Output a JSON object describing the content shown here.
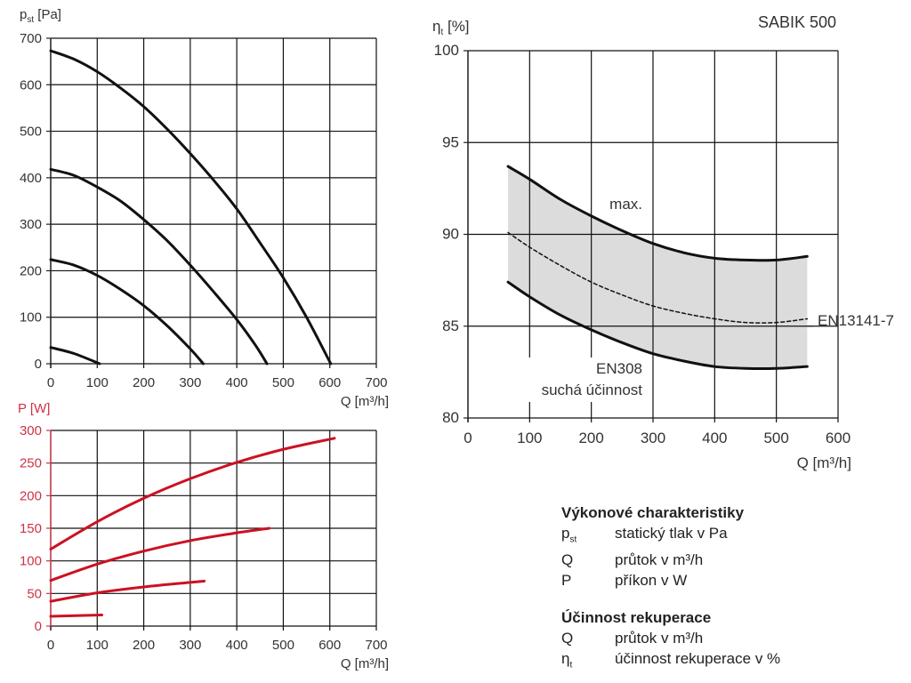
{
  "product_title": "SABIK 500",
  "chart_data": [
    {
      "id": "pressure",
      "type": "line",
      "title": "",
      "ylabel_main": "p",
      "ylabel_sub": "st",
      "ylabel_unit": " [Pa]",
      "xlabel": "Q [m³/h]",
      "xlim": [
        0,
        700
      ],
      "ylim": [
        0,
        700
      ],
      "xticks": [
        0,
        100,
        200,
        300,
        400,
        500,
        600,
        700
      ],
      "yticks": [
        0,
        100,
        200,
        300,
        400,
        500,
        600,
        700
      ],
      "grid": true,
      "line_color": "#111111",
      "series": [
        {
          "name": "speed-1",
          "x": [
            0,
            50,
            105
          ],
          "y": [
            35,
            22,
            0
          ]
        },
        {
          "name": "speed-2",
          "x": [
            0,
            50,
            100,
            150,
            200,
            250,
            300,
            328
          ],
          "y": [
            224,
            212,
            190,
            160,
            125,
            82,
            32,
            0
          ]
        },
        {
          "name": "speed-3",
          "x": [
            0,
            50,
            100,
            150,
            200,
            250,
            300,
            350,
            400,
            440,
            465
          ],
          "y": [
            418,
            405,
            380,
            350,
            310,
            265,
            212,
            155,
            95,
            40,
            0
          ]
        },
        {
          "name": "speed-4",
          "x": [
            0,
            50,
            100,
            150,
            200,
            250,
            300,
            350,
            400,
            450,
            500,
            550,
            602
          ],
          "y": [
            673,
            655,
            628,
            593,
            553,
            505,
            452,
            395,
            333,
            260,
            185,
            100,
            0
          ]
        }
      ]
    },
    {
      "id": "power",
      "type": "line",
      "title": "",
      "ylabel": "P [W]",
      "xlabel": "Q [m³/h]",
      "xlim": [
        0,
        700
      ],
      "ylim": [
        0,
        300
      ],
      "xticks": [
        0,
        100,
        200,
        300,
        400,
        500,
        600,
        700
      ],
      "yticks": [
        0,
        50,
        100,
        150,
        200,
        250,
        300
      ],
      "grid": true,
      "line_color": "#cc1122",
      "axis_color": "#cc3344",
      "series": [
        {
          "name": "speed-1",
          "x": [
            0,
            110
          ],
          "y": [
            15,
            17
          ]
        },
        {
          "name": "speed-2",
          "x": [
            0,
            100,
            200,
            300,
            330
          ],
          "y": [
            38,
            51,
            60,
            67,
            69
          ]
        },
        {
          "name": "speed-3",
          "x": [
            0,
            100,
            200,
            300,
            400,
            470
          ],
          "y": [
            70,
            95,
            115,
            131,
            143,
            150
          ]
        },
        {
          "name": "speed-4",
          "x": [
            0,
            100,
            200,
            300,
            400,
            500,
            610
          ],
          "y": [
            118,
            160,
            196,
            226,
            251,
            271,
            288
          ]
        }
      ]
    },
    {
      "id": "efficiency",
      "type": "area",
      "title": "SABIK 500",
      "ylabel_main": "η",
      "ylabel_sub": "t",
      "ylabel_unit": " [%]",
      "xlabel": "Q [m³/h]",
      "xlim": [
        0,
        600
      ],
      "ylim": [
        80,
        100
      ],
      "xticks": [
        0,
        100,
        200,
        300,
        400,
        500,
        600
      ],
      "yticks": [
        80,
        85,
        90,
        95,
        100
      ],
      "grid": true,
      "fill_color": "#dcdcdc",
      "series": [
        {
          "name": "max.",
          "style": "solid",
          "x": [
            65,
            100,
            150,
            200,
            250,
            300,
            350,
            400,
            450,
            500,
            550
          ],
          "y": [
            93.7,
            93.0,
            91.9,
            91.0,
            90.2,
            89.5,
            89.0,
            88.7,
            88.6,
            88.6,
            88.8
          ]
        },
        {
          "name": "EN13141-7",
          "style": "dashed",
          "x": [
            65,
            100,
            150,
            200,
            250,
            300,
            350,
            400,
            450,
            500,
            550
          ],
          "y": [
            90.1,
            89.3,
            88.3,
            87.4,
            86.7,
            86.1,
            85.7,
            85.4,
            85.2,
            85.2,
            85.4
          ]
        },
        {
          "name": "EN308 suchá účinnost",
          "style": "solid",
          "x": [
            65,
            100,
            150,
            200,
            250,
            300,
            350,
            400,
            450,
            500,
            550
          ],
          "y": [
            87.4,
            86.6,
            85.6,
            84.8,
            84.1,
            83.5,
            83.1,
            82.8,
            82.7,
            82.7,
            82.8
          ]
        }
      ],
      "annotations": [
        {
          "text": "max."
        },
        {
          "text": "EN13141-7"
        },
        {
          "text": "EN308"
        },
        {
          "text": "suchá účinnost"
        }
      ]
    }
  ],
  "legend": {
    "section1": {
      "title": "Výkonové charakteristiky",
      "rows": [
        {
          "sym": "p",
          "sub": "st",
          "desc": "statický tlak v Pa"
        },
        {
          "sym": "Q",
          "sub": "",
          "desc": "průtok v m³/h"
        },
        {
          "sym": "P",
          "sub": "",
          "desc": "příkon v W"
        }
      ]
    },
    "section2": {
      "title": "Účinnost rekuperace",
      "rows": [
        {
          "sym": "Q",
          "sub": "",
          "desc": "průtok v m³/h"
        },
        {
          "sym": "η",
          "sub": "t",
          "desc": "účinnost rekuperace v %"
        }
      ]
    }
  }
}
